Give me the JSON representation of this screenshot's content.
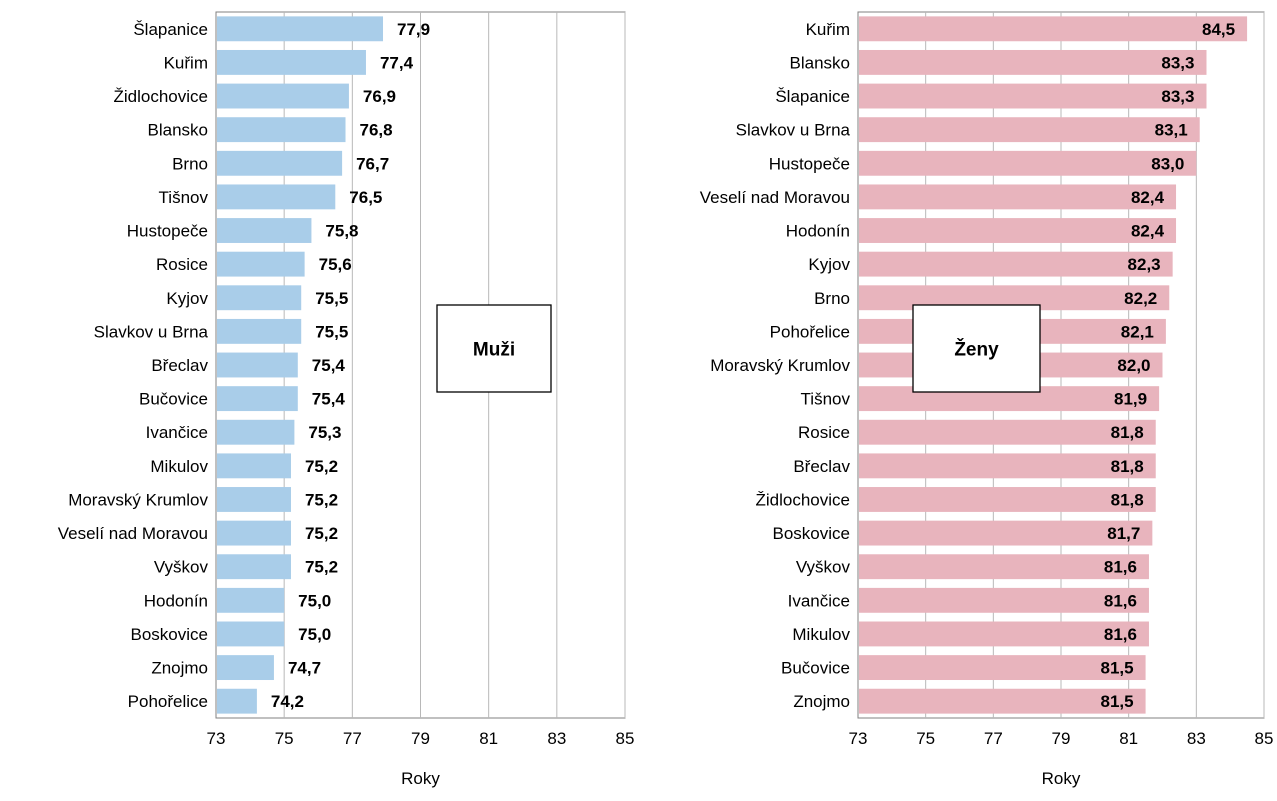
{
  "chart_data": [
    {
      "type": "bar",
      "orientation": "horizontal",
      "legend_box": "Muži",
      "xlabel": "Roky",
      "xlim": [
        73,
        85
      ],
      "xticks": [
        73,
        75,
        77,
        79,
        81,
        83,
        85
      ],
      "x_tick_labels": [
        "73",
        "75",
        "77",
        "79",
        "81",
        "83",
        "85"
      ],
      "grid": "vertical",
      "bar_color": "#a9cde9",
      "categories": [
        "Šlapanice",
        "Kuřim",
        "Židlochovice",
        "Blansko",
        "Brno",
        "Tišnov",
        "Hustopeče",
        "Rosice",
        "Kyjov",
        "Slavkov u Brna",
        "Břeclav",
        "Bučovice",
        "Ivančice",
        "Mikulov",
        "Moravský Krumlov",
        "Veselí nad Moravou",
        "Vyškov",
        "Hodonín",
        "Boskovice",
        "Znojmo",
        "Pohořelice"
      ],
      "values": [
        77.9,
        77.4,
        76.9,
        76.8,
        76.7,
        76.5,
        75.8,
        75.6,
        75.5,
        75.5,
        75.4,
        75.4,
        75.3,
        75.2,
        75.2,
        75.2,
        75.2,
        75.0,
        75.0,
        74.7,
        74.2
      ],
      "value_labels": [
        "77,9",
        "77,4",
        "76,9",
        "76,8",
        "76,7",
        "76,5",
        "75,8",
        "75,6",
        "75,5",
        "75,5",
        "75,4",
        "75,4",
        "75,3",
        "75,2",
        "75,2",
        "75,2",
        "75,2",
        "75,0",
        "75,0",
        "74,7",
        "74,2"
      ],
      "label_position": "outside"
    },
    {
      "type": "bar",
      "orientation": "horizontal",
      "legend_box": "Ženy",
      "xlabel": "Roky",
      "xlim": [
        73,
        85
      ],
      "xticks": [
        73,
        75,
        77,
        79,
        81,
        83,
        85
      ],
      "x_tick_labels": [
        "73",
        "75",
        "77",
        "79",
        "81",
        "83",
        "85"
      ],
      "grid": "vertical",
      "bar_color": "#e8b4bd",
      "categories": [
        "Kuřim",
        "Blansko",
        "Šlapanice",
        "Slavkov u Brna",
        "Hustopeče",
        "Veselí nad Moravou",
        "Hodonín",
        "Kyjov",
        "Brno",
        "Pohořelice",
        "Moravský Krumlov",
        "Tišnov",
        "Rosice",
        "Břeclav",
        "Židlochovice",
        "Boskovice",
        "Vyškov",
        "Ivančice",
        "Mikulov",
        "Bučovice",
        "Znojmo"
      ],
      "values": [
        84.5,
        83.3,
        83.3,
        83.1,
        83.0,
        82.4,
        82.4,
        82.3,
        82.2,
        82.1,
        82.0,
        81.9,
        81.8,
        81.8,
        81.8,
        81.7,
        81.6,
        81.6,
        81.6,
        81.5,
        81.5
      ],
      "value_labels": [
        "84,5",
        "83,3",
        "83,3",
        "83,1",
        "83,0",
        "82,4",
        "82,4",
        "82,3",
        "82,2",
        "82,1",
        "82,0",
        "81,9",
        "81,8",
        "81,8",
        "81,8",
        "81,7",
        "81,6",
        "81,6",
        "81,6",
        "81,5",
        "81,5"
      ],
      "label_position": "inside"
    }
  ]
}
